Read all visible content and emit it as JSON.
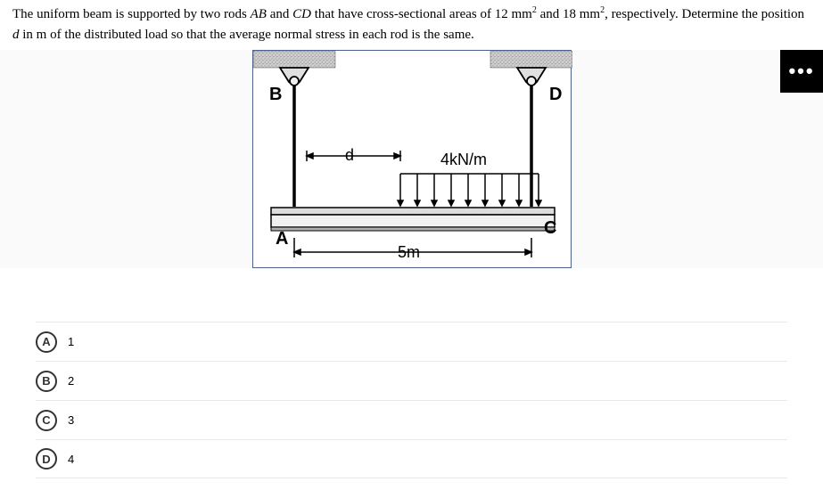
{
  "question": {
    "text_parts": [
      "The uniform beam is supported by two rods ",
      {
        "italic": "AB"
      },
      " and ",
      {
        "italic": "CD"
      },
      " that have cross-sectional areas of 12 mm",
      {
        "sup": "2"
      },
      " and 18 mm",
      {
        "sup": "2"
      },
      ", respectively. Determine the position ",
      {
        "italic": "d"
      },
      " in m of the distributed load so that the average normal stress in each rod is the same."
    ]
  },
  "figure": {
    "labels": {
      "B": "B",
      "D": "D",
      "A": "A",
      "C": "C",
      "d": "d",
      "span": "5m",
      "load": "4kN/m"
    },
    "colors": {
      "border": "#3a63b8",
      "ceiling_fill": "#c8c8c8",
      "beam_light": "#e6e6e6",
      "beam_dark": "#b8b8b8",
      "text": "#000000"
    }
  },
  "more_button": {
    "label": "•••"
  },
  "answers": [
    {
      "letter": "A",
      "value": "1"
    },
    {
      "letter": "B",
      "value": "2"
    },
    {
      "letter": "C",
      "value": "3"
    },
    {
      "letter": "D",
      "value": "4"
    }
  ]
}
